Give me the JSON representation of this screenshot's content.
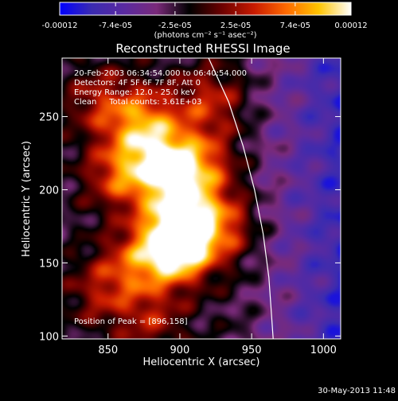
{
  "chart_data": {
    "type": "heatmap",
    "title": "Reconstructed RHESSI Image",
    "xlabel": "Heliocentric X (arcsec)",
    "ylabel": "Heliocentric Y (arcsec)",
    "xlim": [
      818,
      1012
    ],
    "ylim": [
      98,
      290
    ],
    "x_ticks": [
      "850",
      "900",
      "950",
      "1000"
    ],
    "x_tick_values": [
      850,
      900,
      950,
      1000
    ],
    "y_ticks": [
      "100",
      "150",
      "200",
      "250"
    ],
    "y_tick_values": [
      100,
      150,
      200,
      250
    ],
    "colorbar": {
      "ticks": [
        "-0.00012",
        "-7.4e-05",
        "-2.5e-05",
        "2.5e-05",
        "7.4e-05",
        "0.00012"
      ],
      "tick_values": [
        -0.00012,
        -7.4e-05,
        -2.5e-05,
        2.5e-05,
        7.4e-05,
        0.00012
      ],
      "range": [
        -0.00012,
        0.00012
      ],
      "units": "(photons cm⁻² s⁻¹ asec⁻²)",
      "colormap": [
        "#0000ff",
        "#3b2bb0",
        "#5a2aa0",
        "#7a2a7a",
        "#000000",
        "#6b0000",
        "#c81a00",
        "#ff6a00",
        "#ffc400",
        "#ffffff"
      ]
    },
    "info_lines": [
      "20-Feb-2003 06:34:54.000 to 06:40:54.000",
      "Detectors: 4F 5F 6F 7F 8F, Att 0",
      "Energy Range: 12.0 - 25.0 keV",
      "Clean     Total counts: 3.61E+03"
    ],
    "peak_label": "Position of Peak = [896,158]",
    "peak": [
      896,
      158
    ],
    "bright_sources": [
      {
        "x": 898,
        "y": 160,
        "amp": 1.0
      },
      {
        "x": 902,
        "y": 178,
        "amp": 0.85
      },
      {
        "x": 888,
        "y": 215,
        "amp": 0.8
      },
      {
        "x": 875,
        "y": 245,
        "amp": 0.7
      },
      {
        "x": 912,
        "y": 215,
        "amp": 0.65
      },
      {
        "x": 858,
        "y": 210,
        "amp": 0.55
      },
      {
        "x": 870,
        "y": 150,
        "amp": 0.5
      },
      {
        "x": 920,
        "y": 260,
        "amp": 0.45
      },
      {
        "x": 930,
        "y": 175,
        "amp": 0.45
      },
      {
        "x": 845,
        "y": 260,
        "amp": 0.4
      },
      {
        "x": 880,
        "y": 110,
        "amp": 0.35
      },
      {
        "x": 845,
        "y": 130,
        "amp": 0.35
      }
    ],
    "limb_curve": [
      [
        920,
        290
      ],
      [
        934,
        260
      ],
      [
        944,
        230
      ],
      [
        952,
        200
      ],
      [
        958,
        170
      ],
      [
        962,
        140
      ],
      [
        965,
        98
      ]
    ],
    "grid": false,
    "timestamp": "30-May-2013 11:48"
  }
}
